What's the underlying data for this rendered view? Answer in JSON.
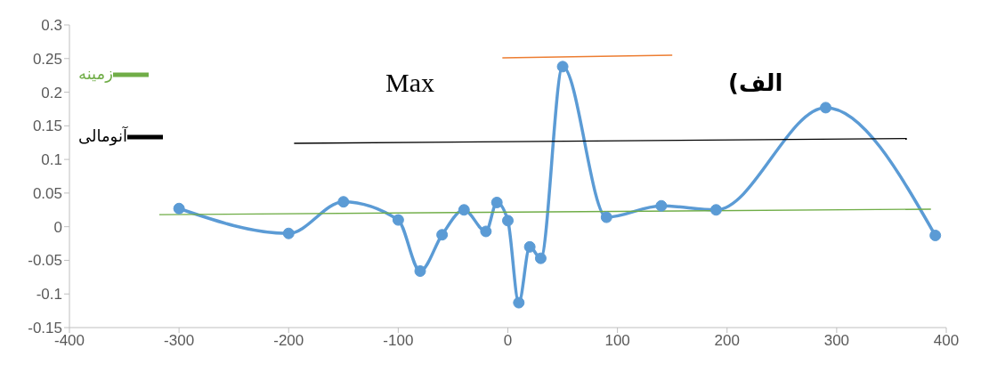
{
  "chart_data": {
    "type": "line",
    "title": "الف)",
    "xlim": [
      -400,
      400
    ],
    "xticks": [
      -400,
      -300,
      -200,
      -100,
      0,
      100,
      200,
      300,
      400
    ],
    "ylim": [
      -0.15,
      0.3
    ],
    "yticks": [
      -0.15,
      -0.1,
      -0.05,
      0,
      0.05,
      0.1,
      0.15,
      0.2,
      0.25,
      0.3
    ],
    "grid": false,
    "legend": "top left",
    "marker": "circle",
    "line_style": "solid",
    "annotations": [
      "Max"
    ],
    "series": [
      {
        "color": "#5b9bd5",
        "x": [
          -300,
          -200,
          -150,
          -100,
          -80,
          -60,
          -40,
          -20,
          -10,
          0,
          10,
          20,
          30,
          50,
          90,
          140,
          190,
          290,
          390
        ],
        "values": [
          0.027,
          -0.01,
          0.037,
          0.01,
          -0.066,
          -0.012,
          0.025,
          -0.007,
          0.036,
          0.009,
          -0.113,
          -0.03,
          -0.047,
          0.238,
          0.014,
          0.031,
          0.025,
          0.177,
          -0.013
        ]
      },
      {
        "name": "زمینه",
        "color": "#70ad47",
        "marker": "none",
        "x": [
          -318,
          386
        ],
        "values": [
          0.018,
          0.026
        ]
      },
      {
        "name": "آنومالی",
        "color": "#000000",
        "marker": "none",
        "x": [
          -195,
          364
        ],
        "values": [
          0.124,
          0.131
        ]
      },
      {
        "color": "#ed7d31",
        "marker": "none",
        "x": [
          -5,
          150
        ],
        "values": [
          0.251,
          0.255
        ]
      }
    ]
  }
}
